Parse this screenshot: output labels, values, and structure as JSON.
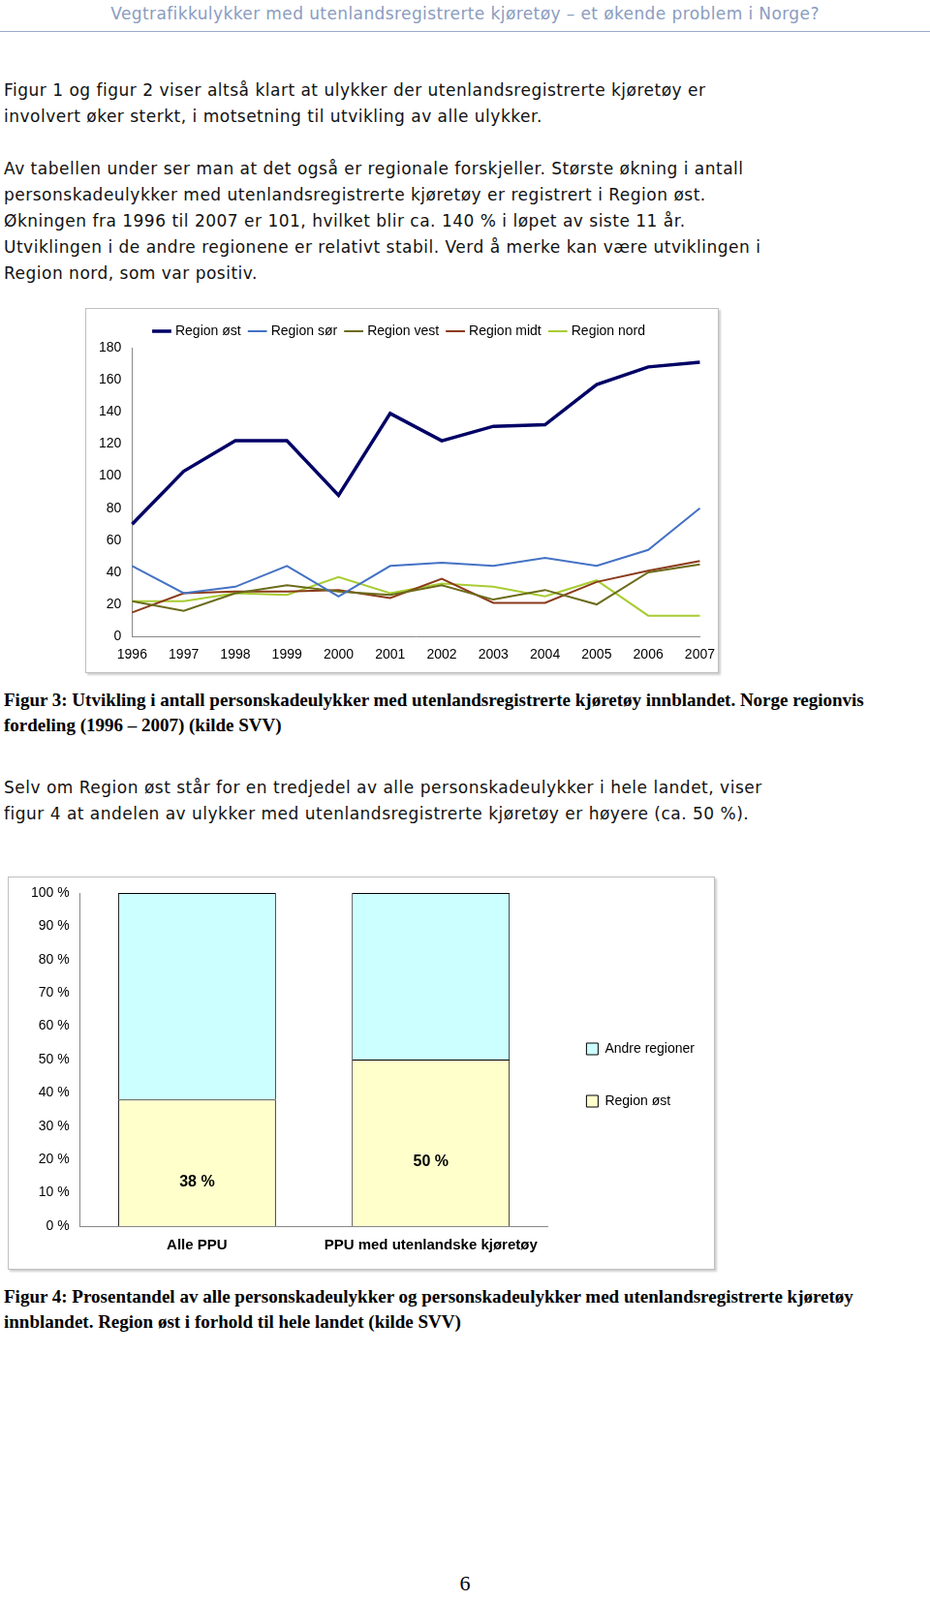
{
  "header": "Vegtrafikkulykker med utenlandsregistrerte kjøretøy – et økende problem i Norge?",
  "paragraphs": [
    [
      "Figur 1 og figur 2 viser altså klart at ulykker der utenlandsregistrerte kjøretøy er",
      "involvert øker sterkt, i motsetning til utvikling av alle ulykker."
    ],
    [
      "Av tabellen under ser man at det også er regionale forskjeller. Største økning i antall",
      "personskadeulykker med utenlandsregistrerte kjøretøy er registrert i Region øst.",
      "Økningen fra 1996 til 2007 er 101, hvilket blir ca. 140 % i løpet av siste 11 år.",
      "Utviklingen i de andre regionene er relativt stabil. Verd å merke kan være utviklingen i",
      "Region nord, som var positiv."
    ],
    [
      "Selv om Region øst står for en tredjedel av alle personskadeulykker i hele landet, viser",
      "figur 4 at andelen av ulykker med utenlandsregistrerte kjøretøy er høyere (ca. 50 %)."
    ]
  ],
  "chart_data": [
    {
      "type": "line",
      "caption": "Figur 3: Utvikling i antall personskadeulykker med utenlandsregistrerte kjøretøy innblandet. Norge regionvis fordeling (1996 – 2007) (kilde SVV)",
      "categories": [
        "1996",
        "1997",
        "1998",
        "1999",
        "2000",
        "2001",
        "2002",
        "2003",
        "2004",
        "2005",
        "2006",
        "2007"
      ],
      "series": [
        {
          "name": "Region øst",
          "color": "#000066",
          "values": [
            70,
            103,
            122,
            122,
            88,
            139,
            122,
            131,
            132,
            157,
            168,
            171
          ]
        },
        {
          "name": "Region sør",
          "color": "#4472c4",
          "values": [
            44,
            27,
            31,
            44,
            25,
            44,
            46,
            44,
            49,
            44,
            54,
            80
          ]
        },
        {
          "name": "Region vest",
          "color": "#6b6b1a",
          "values": [
            22,
            16,
            27,
            32,
            28,
            26,
            32,
            23,
            29,
            20,
            40,
            45
          ]
        },
        {
          "name": "Region midt",
          "color": "#8b3a1a",
          "values": [
            15,
            27,
            28,
            28,
            29,
            24,
            36,
            21,
            21,
            34,
            41,
            47
          ]
        },
        {
          "name": "Region nord",
          "color": "#a8cc33",
          "values": [
            22,
            22,
            27,
            26,
            37,
            27,
            33,
            31,
            25,
            35,
            13,
            13
          ]
        }
      ],
      "ylim": [
        0,
        180
      ],
      "yticks": [
        0,
        20,
        40,
        60,
        80,
        100,
        120,
        140,
        160,
        180
      ],
      "grid": false,
      "legend": "top"
    },
    {
      "type": "bar",
      "caption": "Figur 4: Prosentandel av alle personskadeulykker og personskadeulykker med utenlandsregistrerte kjøretøy innblandet. Region øst i forhold til hele landet (kilde SVV)",
      "categories": [
        "Alle PPU",
        "PPU med utenlandske kjøretøy"
      ],
      "series": [
        {
          "name": "Region øst",
          "color": "#ffffcc",
          "values": [
            38,
            50
          ],
          "data_labels": true,
          "value_labels": [
            "38 %",
            "50 %"
          ]
        },
        {
          "name": "Andre regioner",
          "color": "#ccffff",
          "values": [
            62,
            50
          ]
        }
      ],
      "stacked": true,
      "ylim": [
        0,
        100
      ],
      "yticks": [
        {
          "value": 0,
          "label": "0 %"
        },
        {
          "value": 10,
          "label": "10 %"
        },
        {
          "value": 20,
          "label": "20 %"
        },
        {
          "value": 30,
          "label": "30 %"
        },
        {
          "value": 40,
          "label": "40 %"
        },
        {
          "value": 50,
          "label": "50 %"
        },
        {
          "value": 60,
          "label": "60 %"
        },
        {
          "value": 70,
          "label": "70 %"
        },
        {
          "value": 80,
          "label": "80 %"
        },
        {
          "value": 90,
          "label": "90 %"
        },
        {
          "value": 100,
          "label": "100 %"
        }
      ],
      "grid": false,
      "legend": "right"
    }
  ],
  "page_number": "6"
}
